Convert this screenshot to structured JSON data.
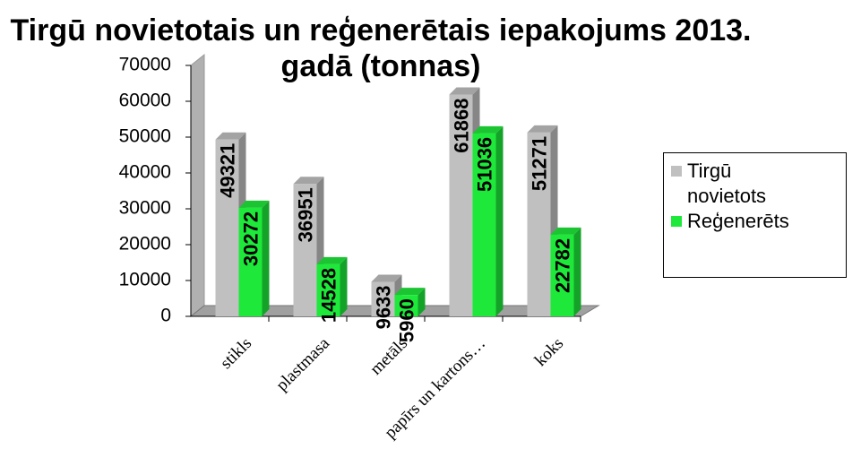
{
  "chart_data": {
    "type": "bar3d",
    "title": "Tirgū novietotais un reģenerētais iepakojums 2013. gadā (tonnas)",
    "categories": [
      "stikls",
      "plastmasa",
      "metāls",
      "papīrs un kartons…",
      "koks"
    ],
    "series": [
      {
        "name": "Tirgū novietots",
        "color": "#c0c0c0",
        "values": [
          49321,
          36951,
          9633,
          61868,
          51271
        ]
      },
      {
        "name": "Reģenerēts",
        "color": "#1ee83a",
        "values": [
          30272,
          14528,
          5960,
          51036,
          22782
        ]
      }
    ],
    "ylim": [
      0,
      70000
    ],
    "yticks": [
      0,
      10000,
      20000,
      30000,
      40000,
      50000,
      60000,
      70000
    ],
    "legend": "right"
  }
}
